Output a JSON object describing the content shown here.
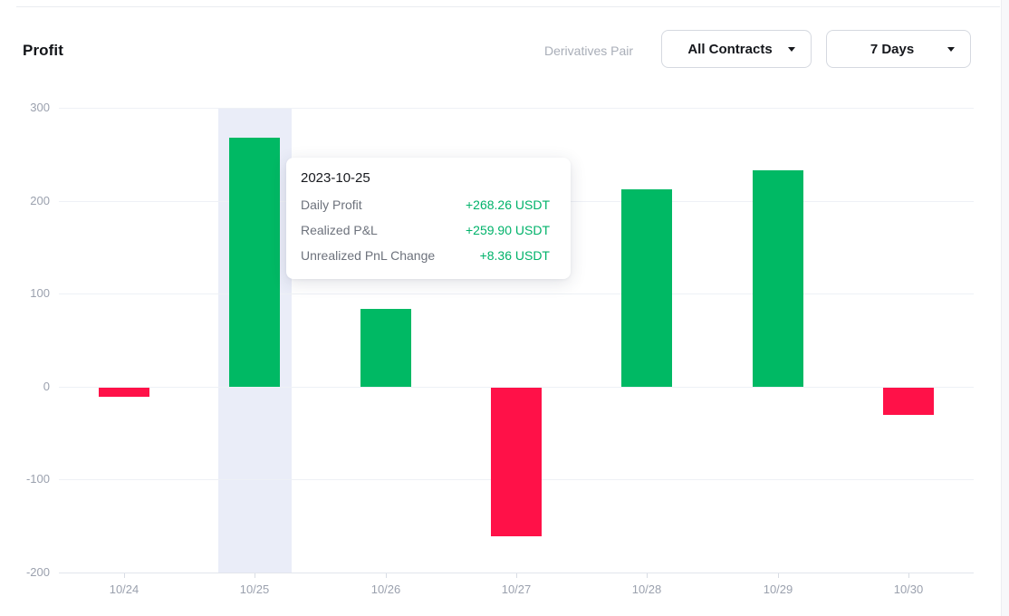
{
  "header": {
    "title": "Profit",
    "filter_label": "Derivatives Pair",
    "contracts_dropdown": "All Contracts",
    "period_dropdown": "7 Days"
  },
  "chart_data": {
    "type": "bar",
    "title": "Profit",
    "categories": [
      "10/24",
      "10/25",
      "10/26",
      "10/27",
      "10/28",
      "10/29",
      "10/30"
    ],
    "values": [
      -10,
      268.26,
      84,
      -160,
      212,
      233,
      -29
    ],
    "y_ticks": [
      300,
      200,
      100,
      0,
      -100,
      -200
    ],
    "ylim": [
      -200,
      300
    ],
    "xlabel": "",
    "ylabel": "",
    "grid": true,
    "legend": "none",
    "positive_color": "#00b964",
    "negative_color": "#ff1148",
    "highlighted_index": 1,
    "highlight_color": "#eaedf8"
  },
  "tooltip": {
    "date": "2023-10-25",
    "value_color": "#00b26a",
    "rows": [
      {
        "label": "Daily Profit",
        "value": "+268.26 USDT"
      },
      {
        "label": "Realized P&L",
        "value": "+259.90 USDT"
      },
      {
        "label": "Unrealized PnL Change",
        "value": "+8.36 USDT"
      }
    ]
  }
}
